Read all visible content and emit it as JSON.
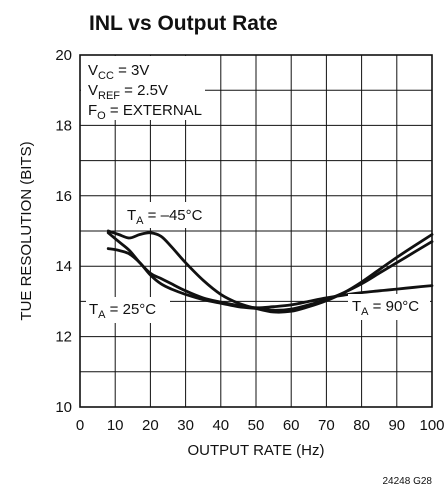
{
  "chart_data": {
    "type": "line",
    "title": "INL vs Output Rate",
    "xlabel": "OUTPUT RATE (Hz)",
    "ylabel": "TUE RESOLUTION (BITS)",
    "xlim": [
      0,
      100
    ],
    "ylim": [
      10,
      20
    ],
    "xticks": [
      0,
      10,
      20,
      30,
      40,
      50,
      60,
      70,
      80,
      90,
      100
    ],
    "yticks": [
      10,
      12,
      14,
      16,
      18,
      20
    ],
    "grid": true,
    "conditions": {
      "vcc": {
        "main": "V",
        "sub": "CC",
        "rest": " = 3V"
      },
      "vref": {
        "main": "V",
        "sub": "REF",
        "rest": " = 2.5V"
      },
      "fo": {
        "main": "F",
        "sub": "O",
        "rest": " = EXTERNAL"
      }
    },
    "series": [
      {
        "name_parts": {
          "main": "T",
          "sub": "A",
          "rest": " = –45°C"
        },
        "x": [
          8,
          11,
          14,
          17,
          20,
          23,
          26,
          30,
          35,
          40,
          45,
          50,
          55,
          60,
          65,
          70,
          75,
          80,
          85,
          90,
          95,
          100
        ],
        "y": [
          15.0,
          14.9,
          14.8,
          14.9,
          14.95,
          14.85,
          14.55,
          14.1,
          13.6,
          13.2,
          12.95,
          12.8,
          12.7,
          12.72,
          12.85,
          13.02,
          13.25,
          13.55,
          13.9,
          14.25,
          14.58,
          14.9
        ]
      },
      {
        "name_parts": {
          "main": "T",
          "sub": "A",
          "rest": " = 25°C"
        },
        "x": [
          8,
          11,
          14,
          17,
          20,
          23,
          26,
          30,
          35,
          40,
          45,
          50,
          55,
          60,
          65,
          70,
          75,
          80,
          85,
          90,
          95,
          100
        ],
        "y": [
          14.5,
          14.45,
          14.35,
          14.1,
          13.75,
          13.5,
          13.35,
          13.2,
          13.05,
          12.95,
          12.85,
          12.8,
          12.75,
          12.78,
          12.9,
          13.05,
          13.25,
          13.5,
          13.8,
          14.1,
          14.4,
          14.7
        ]
      },
      {
        "name_parts": {
          "main": "T",
          "sub": "A",
          "rest": " = 90°C"
        },
        "x": [
          8,
          11,
          14,
          17,
          20,
          23,
          26,
          30,
          35,
          40,
          45,
          50,
          55,
          60,
          65,
          70,
          75,
          80,
          85,
          90,
          95,
          100
        ],
        "y": [
          14.95,
          14.7,
          14.45,
          14.1,
          13.8,
          13.65,
          13.5,
          13.3,
          13.1,
          12.98,
          12.88,
          12.82,
          12.85,
          12.9,
          13.0,
          13.1,
          13.18,
          13.25,
          13.3,
          13.35,
          13.4,
          13.45
        ]
      }
    ]
  },
  "footer_code": "24248 G28"
}
